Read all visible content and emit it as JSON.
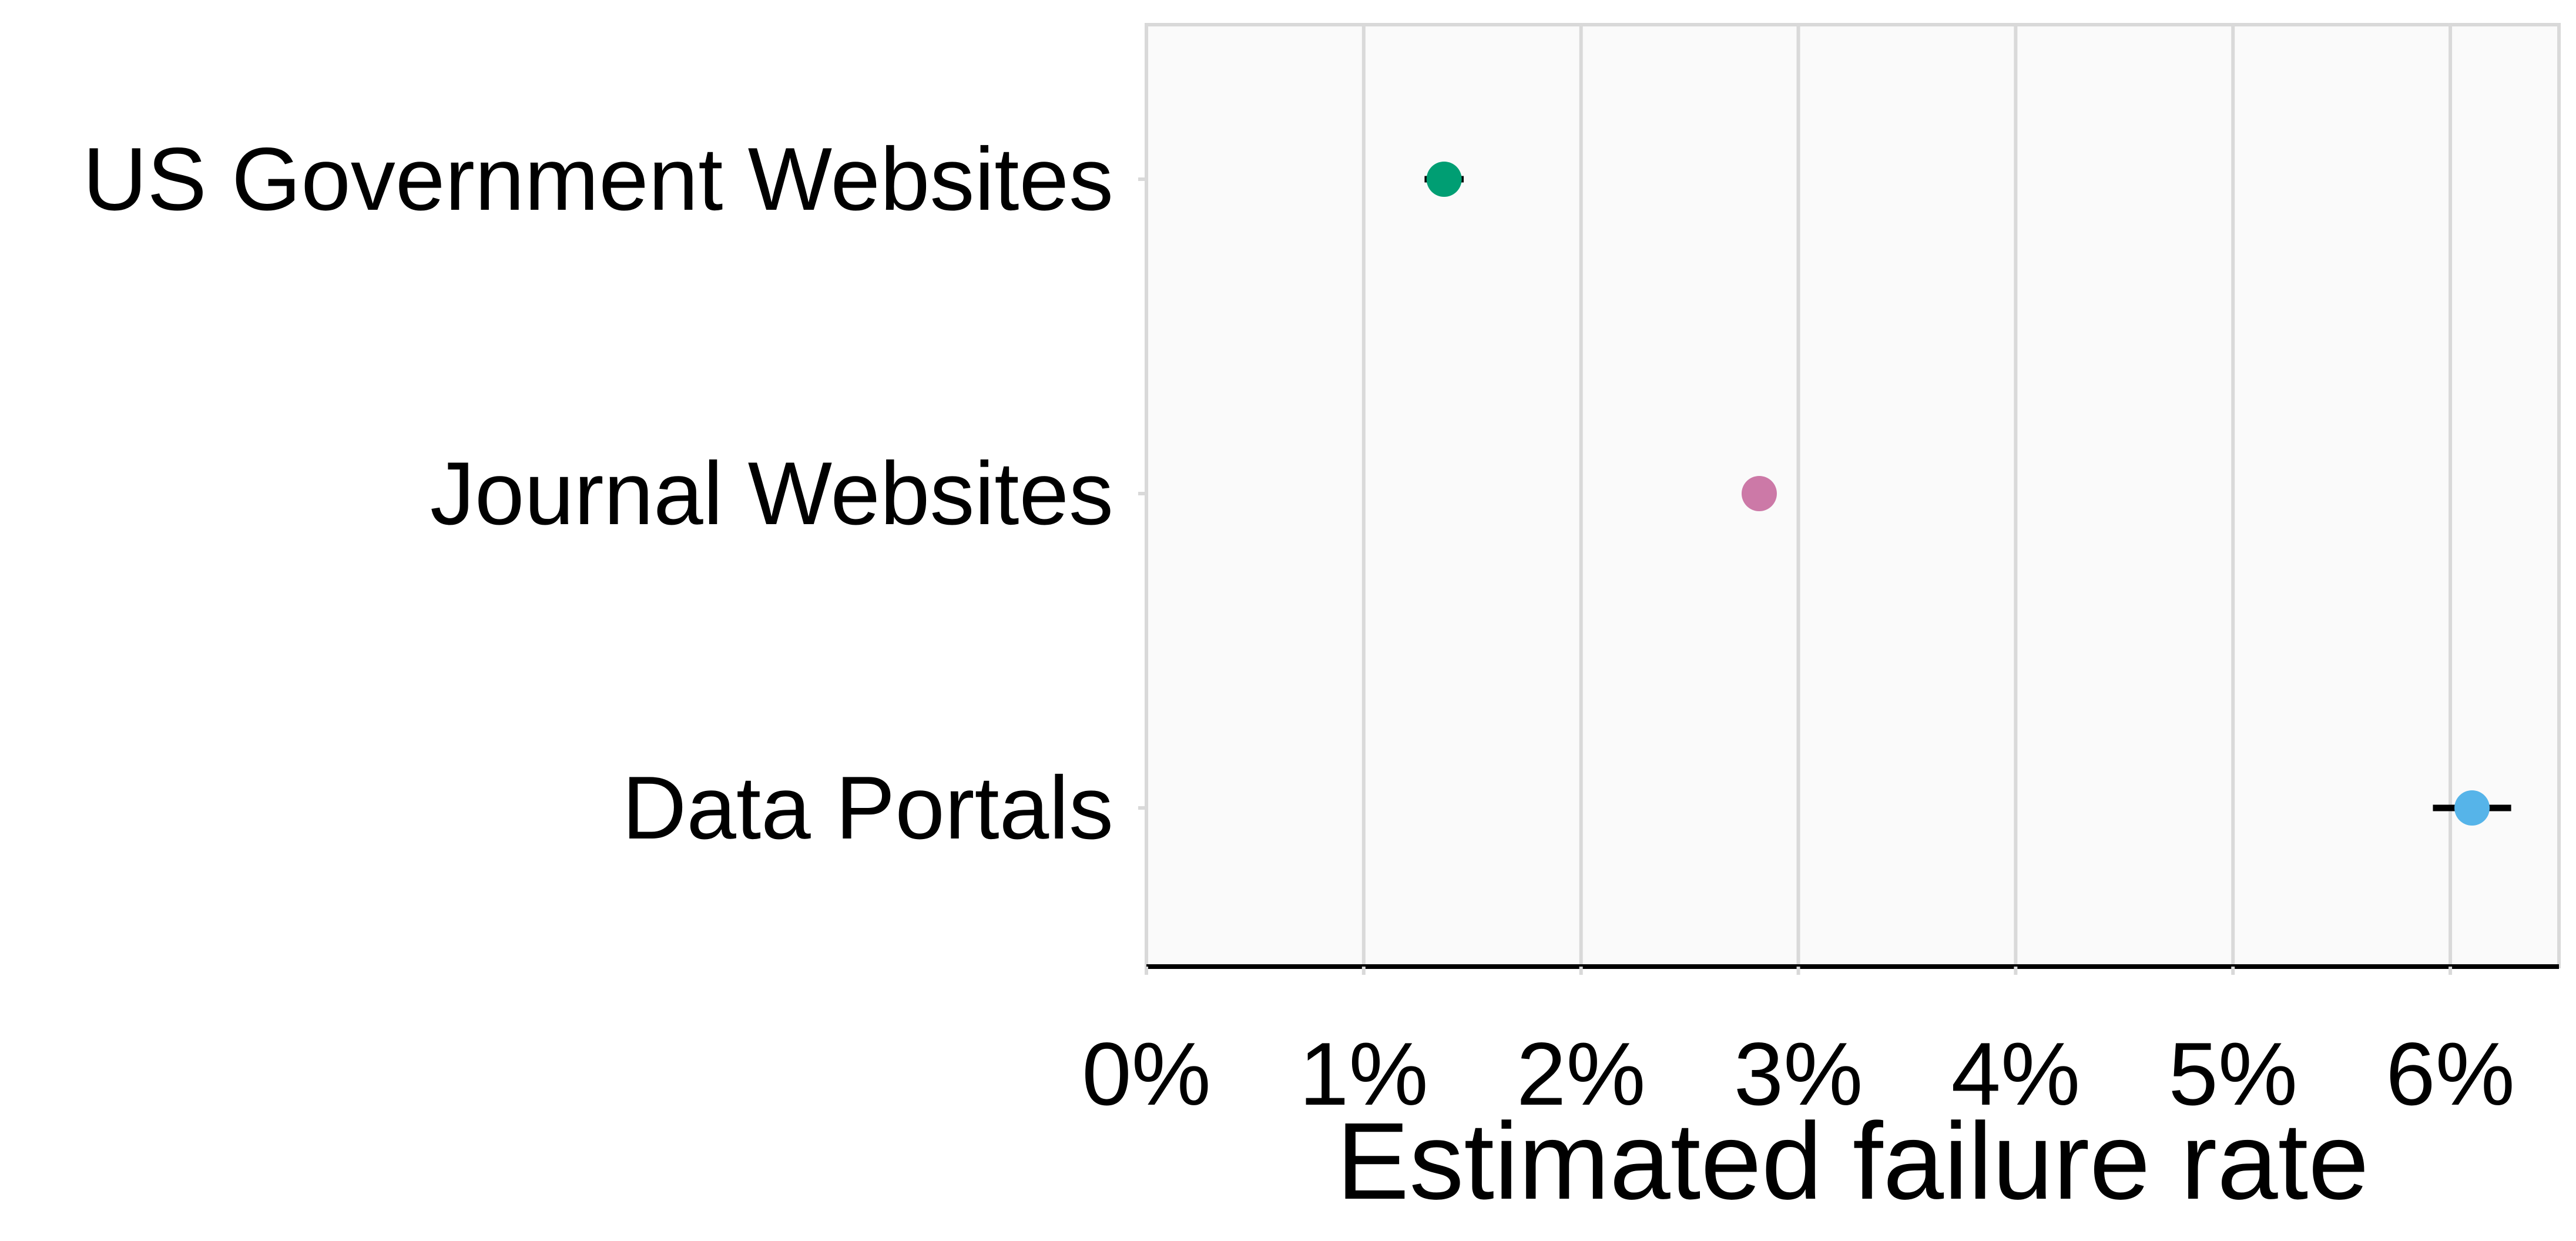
{
  "chart_data": {
    "type": "scatter",
    "title": "",
    "xlabel": "Estimated failure rate",
    "ylabel": "",
    "xlim": [
      0,
      6.5
    ],
    "x_ticks": [
      0,
      1,
      2,
      3,
      4,
      5,
      6
    ],
    "x_tick_labels": [
      "0%",
      "1%",
      "2%",
      "3%",
      "4%",
      "5%",
      "6%"
    ],
    "grid": true,
    "legend": "none",
    "categories": [
      "US Government Websites",
      "Journal Websites",
      "Data Portals"
    ],
    "points": [
      {
        "category": "US Government Websites",
        "value": 1.37,
        "ci_low": 1.28,
        "ci_high": 1.46,
        "color": "#009E73"
      },
      {
        "category": "Journal Websites",
        "value": 2.82,
        "ci_low": 2.79,
        "ci_high": 2.85,
        "color": "#CC79A7"
      },
      {
        "category": "Data Portals",
        "value": 6.1,
        "ci_low": 5.92,
        "ci_high": 6.28,
        "color": "#56B4E9"
      }
    ],
    "colors": {
      "panel_background": "#FAFAFA",
      "panel_border": "#D9D9D9",
      "gridline": "#D9D9D9",
      "axis_line": "#000000",
      "error_bar": "#000000"
    }
  }
}
